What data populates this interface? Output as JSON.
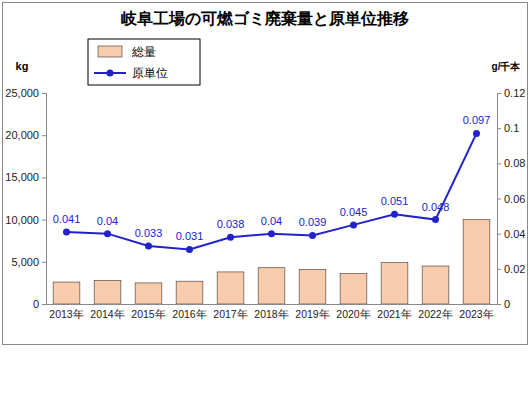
{
  "chart_data": {
    "type": "bar",
    "title": "岐阜工場の可燃ゴミ廃棄量と原単位推移",
    "ylabel": "kg",
    "y2label": "g/千本",
    "categories": [
      "2013年",
      "2014年",
      "2015年",
      "2016年",
      "2017年",
      "2018年",
      "2019年",
      "2020年",
      "2021年",
      "2022年",
      "2023年"
    ],
    "series": [
      {
        "name": "総量",
        "type": "bar",
        "color": "#f8cbad",
        "values": [
          2600,
          2800,
          2500,
          2700,
          3800,
          4300,
          4100,
          3600,
          4900,
          4500,
          10000
        ]
      },
      {
        "name": "原単位",
        "type": "line",
        "color": "#2222cc",
        "axis": "y2",
        "marker": "circle",
        "data_labels": true,
        "values": [
          0.041,
          0.04,
          0.033,
          0.031,
          0.038,
          0.04,
          0.039,
          0.045,
          0.051,
          0.048,
          0.097
        ]
      }
    ],
    "ylim": [
      0,
      25000
    ],
    "yticks": [
      0,
      {
        "value": 5000,
        "label": "5,000"
      },
      {
        "value": 10000,
        "label": "10,000"
      },
      {
        "value": 15000,
        "label": "15,000"
      },
      {
        "value": 20000,
        "label": "20,000"
      },
      {
        "value": 25000,
        "label": "25,000"
      }
    ],
    "y2lim": [
      0,
      0.12
    ],
    "y2ticks": [
      0,
      0.02,
      0.04,
      0.06,
      0.08,
      0.1,
      0.12
    ],
    "grid": false,
    "legend": "upper left"
  }
}
